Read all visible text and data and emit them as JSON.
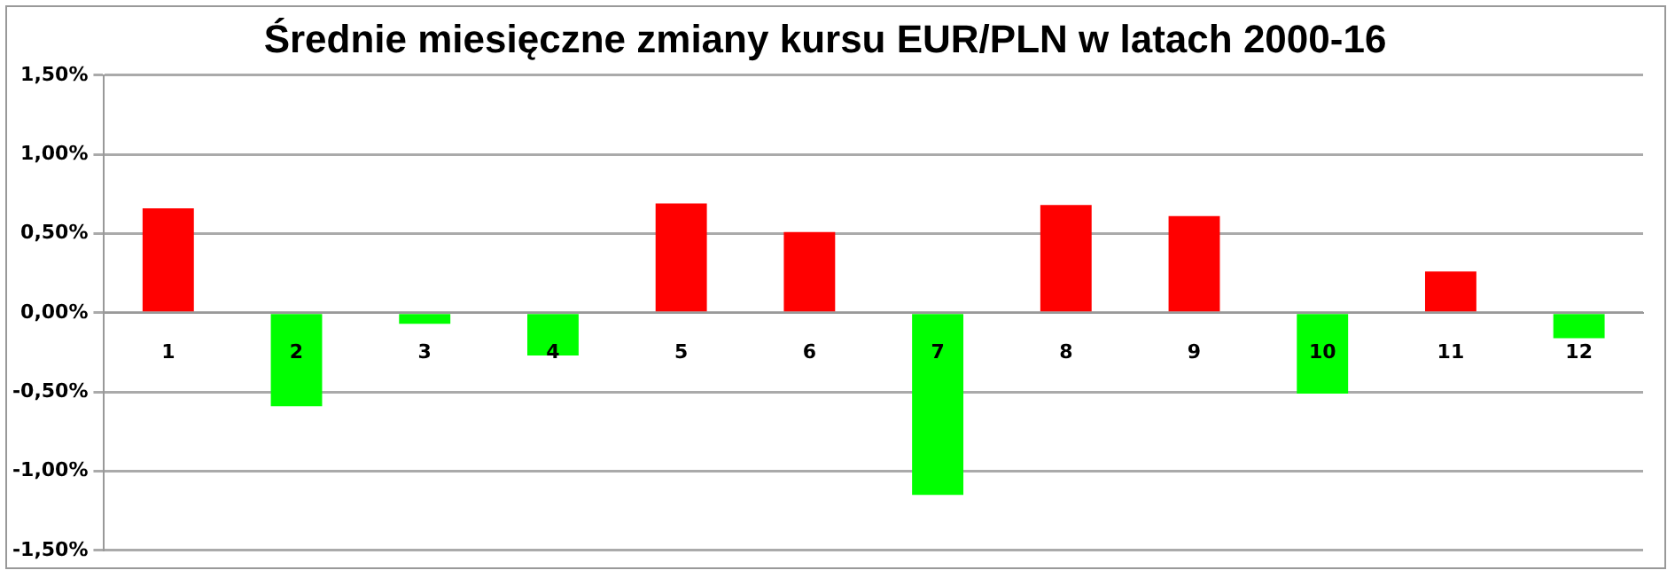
{
  "chart_data": {
    "type": "bar",
    "title": "Średnie miesięczne zmiany kursu EUR/PLN w latach 2000-16",
    "categories": [
      "1",
      "2",
      "3",
      "4",
      "5",
      "6",
      "7",
      "8",
      "9",
      "10",
      "11",
      "12"
    ],
    "values": [
      0.66,
      -0.59,
      -0.07,
      -0.27,
      0.69,
      0.51,
      -1.15,
      0.68,
      0.61,
      -0.51,
      0.26,
      -0.16
    ],
    "colors": [
      "#ff0000",
      "#00ff00",
      "#00ff00",
      "#00ff00",
      "#ff0000",
      "#ff0000",
      "#00ff00",
      "#ff0000",
      "#ff0000",
      "#00ff00",
      "#ff0000",
      "#00ff00"
    ],
    "ylim": [
      -1.5,
      1.5
    ],
    "yticks": [
      {
        "value": -1.5,
        "label": "-1,50%"
      },
      {
        "value": -1,
        "label": "-1,00%"
      },
      {
        "value": -0.5,
        "label": "-0,50%"
      },
      {
        "value": 0,
        "label": "0,00%"
      },
      {
        "value": 0.5,
        "label": "0,50%"
      },
      {
        "value": 1,
        "label": "1,00%"
      },
      {
        "value": 1.5,
        "label": "1,50%"
      }
    ],
    "grid": "y",
    "legend": false
  }
}
